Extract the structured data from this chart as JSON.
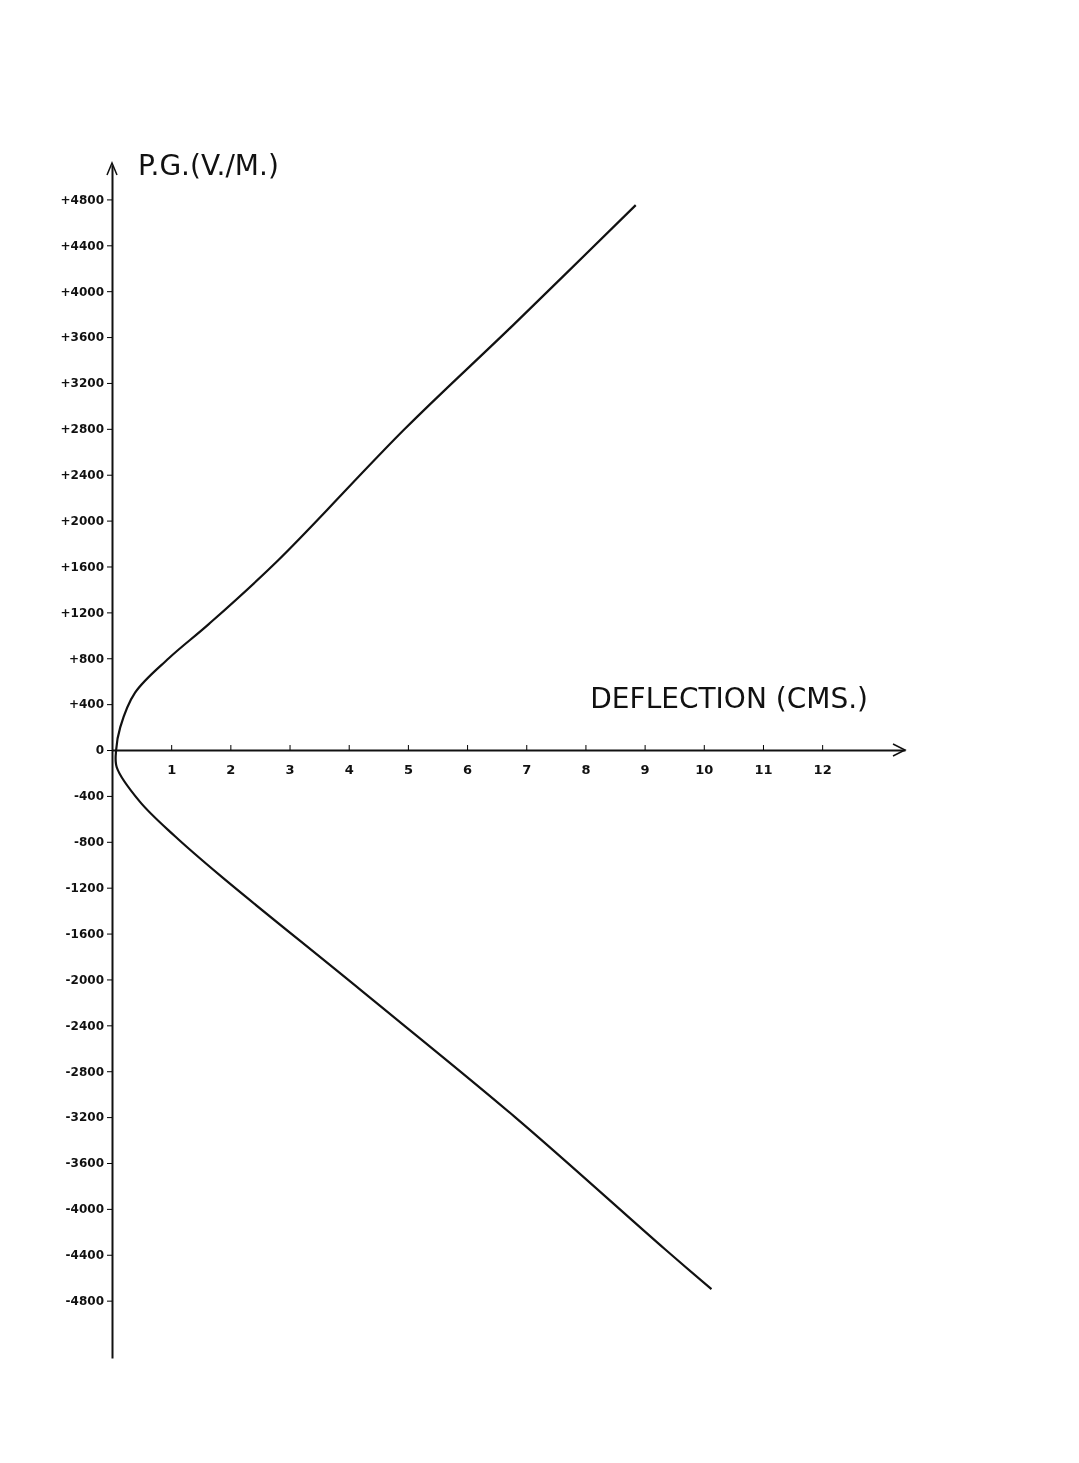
{
  "chart_data": {
    "type": "line",
    "xlabel": "DEFLECTION (CMS.)",
    "ylabel": "P.G.(V./M.)",
    "xlim": [
      0,
      13.4
    ],
    "xticks": [
      1,
      2,
      3,
      4,
      5,
      6,
      7,
      8,
      9,
      10,
      11,
      12
    ],
    "ylim": [
      -5300,
      5100
    ],
    "yticks": [
      {
        "value": 4800,
        "label": "+4800"
      },
      {
        "value": 4400,
        "label": "+4400"
      },
      {
        "value": 4000,
        "label": "+4000"
      },
      {
        "value": 3600,
        "label": "+3600"
      },
      {
        "value": 3200,
        "label": "+3200"
      },
      {
        "value": 2800,
        "label": "+2800"
      },
      {
        "value": 2400,
        "label": "+2400"
      },
      {
        "value": 2000,
        "label": "+2000"
      },
      {
        "value": 1600,
        "label": "+1600"
      },
      {
        "value": 1200,
        "label": "+1200"
      },
      {
        "value": 800,
        "label": "+800"
      },
      {
        "value": 400,
        "label": "+400"
      },
      0,
      -400,
      -800,
      -1200,
      -1600,
      -2000,
      -2400,
      -2800,
      -3200,
      -3600,
      -4000,
      -4400,
      -4800
    ],
    "grid": false,
    "marker": "none",
    "line_style": "solid",
    "series": [
      {
        "color": "#111111",
        "x": [
          8.85,
          6.77,
          4.95,
          2.8,
          1.64,
          0.96,
          0.39,
          0.14,
          0.07,
          0.08,
          0.47,
          1.06,
          1.84,
          4.22,
          6.81,
          9.34,
          10.13
        ],
        "values": [
          4750,
          3700,
          2800,
          1650,
          1100,
          800,
          500,
          200,
          0,
          -150,
          -450,
          -750,
          -1100,
          -2100,
          -3200,
          -4350,
          -4700
        ]
      }
    ]
  }
}
